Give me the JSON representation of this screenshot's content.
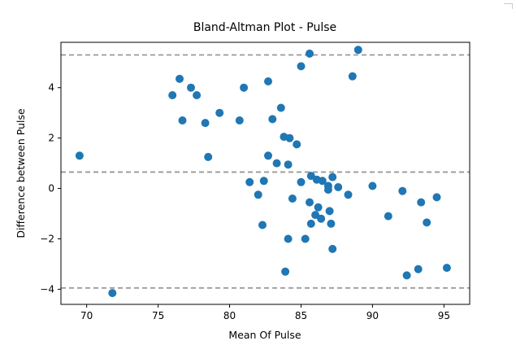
{
  "chart_data": {
    "type": "scatter",
    "title": "Bland-Altman Plot - Pulse",
    "xlabel": "Mean Of Pulse",
    "ylabel": "Difference between Pulse",
    "xlim": [
      68.2,
      96.8
    ],
    "ylim": [
      -4.6,
      5.8
    ],
    "x_ticks": [
      70,
      75,
      80,
      85,
      90,
      95
    ],
    "y_ticks": [
      -4,
      -2,
      0,
      2,
      4
    ],
    "grid": false,
    "point_color": "#1f77b4",
    "reference_line_color": "#999999",
    "reference_lines": [
      5.3,
      0.65,
      -3.95
    ],
    "points": [
      [
        69.5,
        1.3
      ],
      [
        71.8,
        -4.15
      ],
      [
        76.0,
        3.7
      ],
      [
        76.5,
        4.35
      ],
      [
        76.7,
        2.7
      ],
      [
        77.3,
        4.0
      ],
      [
        77.7,
        3.7
      ],
      [
        78.3,
        2.6
      ],
      [
        78.5,
        1.25
      ],
      [
        79.3,
        3.0
      ],
      [
        80.7,
        2.7
      ],
      [
        81.0,
        4.0
      ],
      [
        81.4,
        0.25
      ],
      [
        82.0,
        -0.25
      ],
      [
        82.3,
        -1.45
      ],
      [
        82.4,
        0.3
      ],
      [
        82.7,
        4.25
      ],
      [
        82.7,
        1.3
      ],
      [
        83.0,
        2.75
      ],
      [
        83.3,
        1.0
      ],
      [
        83.6,
        3.2
      ],
      [
        83.8,
        2.05
      ],
      [
        83.9,
        -3.3
      ],
      [
        84.1,
        0.95
      ],
      [
        84.2,
        2.0
      ],
      [
        84.1,
        -2.0
      ],
      [
        84.4,
        -0.4
      ],
      [
        84.7,
        1.75
      ],
      [
        85.0,
        4.85
      ],
      [
        85.0,
        0.25
      ],
      [
        85.3,
        -2.0
      ],
      [
        85.6,
        5.35
      ],
      [
        85.6,
        -0.55
      ],
      [
        85.7,
        0.5
      ],
      [
        85.7,
        -1.4
      ],
      [
        86.0,
        -1.05
      ],
      [
        86.1,
        0.35
      ],
      [
        86.2,
        -0.75
      ],
      [
        86.4,
        -1.2
      ],
      [
        86.5,
        0.3
      ],
      [
        86.9,
        0.1
      ],
      [
        86.9,
        -0.05
      ],
      [
        87.0,
        -0.9
      ],
      [
        87.1,
        -1.4
      ],
      [
        87.2,
        0.45
      ],
      [
        87.2,
        -2.4
      ],
      [
        87.6,
        0.05
      ],
      [
        88.3,
        -0.25
      ],
      [
        88.6,
        4.45
      ],
      [
        89.0,
        5.5
      ],
      [
        90.0,
        0.1
      ],
      [
        91.1,
        -1.1
      ],
      [
        92.1,
        -0.1
      ],
      [
        92.4,
        -3.45
      ],
      [
        93.2,
        -3.2
      ],
      [
        93.4,
        -0.55
      ],
      [
        93.8,
        -1.35
      ],
      [
        94.5,
        -0.35
      ],
      [
        95.2,
        -3.15
      ]
    ]
  }
}
